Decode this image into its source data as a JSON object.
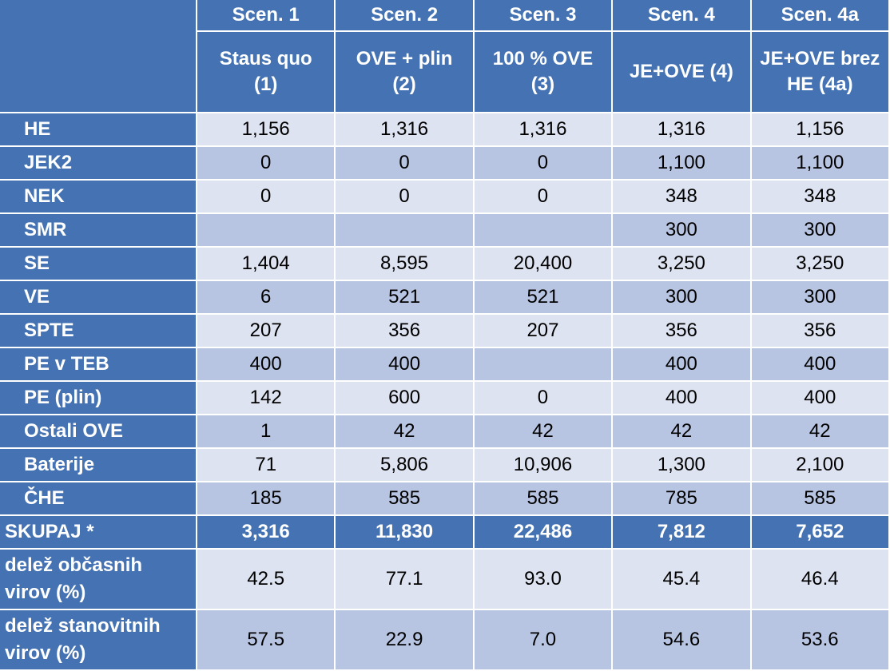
{
  "columns": [
    {
      "scen": "Scen. 1",
      "name_line1": "Staus quo",
      "name_line2": "(1)"
    },
    {
      "scen": "Scen. 2",
      "name_line1": "OVE + plin",
      "name_line2": "(2)"
    },
    {
      "scen": "Scen. 3",
      "name_line1": "100 % OVE",
      "name_line2": "(3)"
    },
    {
      "scen": "Scen. 4",
      "name_line1": "JE+OVE (4)",
      "name_line2": ""
    },
    {
      "scen": "Scen. 4a",
      "name_line1": "JE+OVE brez",
      "name_line2": "HE (4a)"
    }
  ],
  "rows": [
    {
      "label": "HE",
      "values": [
        "1,156",
        "1,316",
        "1,316",
        "1,316",
        "1,156"
      ]
    },
    {
      "label": "JEK2",
      "values": [
        "0",
        "0",
        "0",
        "1,100",
        "1,100"
      ]
    },
    {
      "label": "NEK",
      "values": [
        "0",
        "0",
        "0",
        "348",
        "348"
      ]
    },
    {
      "label": "SMR",
      "values": [
        "",
        "",
        "",
        "300",
        "300"
      ]
    },
    {
      "label": "SE",
      "values": [
        "1,404",
        "8,595",
        "20,400",
        "3,250",
        "3,250"
      ]
    },
    {
      "label": "VE",
      "values": [
        "6",
        "521",
        "521",
        "300",
        "300"
      ]
    },
    {
      "label": "SPTE",
      "values": [
        "207",
        "356",
        "207",
        "356",
        "356"
      ]
    },
    {
      "label": "PE v TEB",
      "values": [
        "400",
        "400",
        "",
        "400",
        "400"
      ]
    },
    {
      "label": "PE (plin)",
      "values": [
        "142",
        "600",
        "0",
        "400",
        "400"
      ]
    },
    {
      "label": "Ostali OVE",
      "values": [
        "1",
        "42",
        "42",
        "42",
        "42"
      ]
    },
    {
      "label": "Baterije",
      "values": [
        "71",
        "5,806",
        "10,906",
        "1,300",
        "2,100"
      ]
    },
    {
      "label": "ČHE",
      "values": [
        "185",
        "585",
        "585",
        "785",
        "585"
      ]
    }
  ],
  "total": {
    "label": "SKUPAJ *",
    "values": [
      "3,316",
      "11,830",
      "22,486",
      "7,812",
      "7,652"
    ]
  },
  "shares": [
    {
      "label_line1": "delež občasnih",
      "label_line2": "virov (%)",
      "values": [
        "42.5",
        "77.1",
        "93.0",
        "45.4",
        "46.4"
      ]
    },
    {
      "label_line1": "delež stanovitnih",
      "label_line2": "virov (%)",
      "values": [
        "57.5",
        "22.9",
        "7.0",
        "54.6",
        "53.6"
      ]
    }
  ],
  "colors": {
    "header": "#4472b2",
    "row_light": "#dde3f1",
    "row_dark": "#b7c5e2"
  }
}
